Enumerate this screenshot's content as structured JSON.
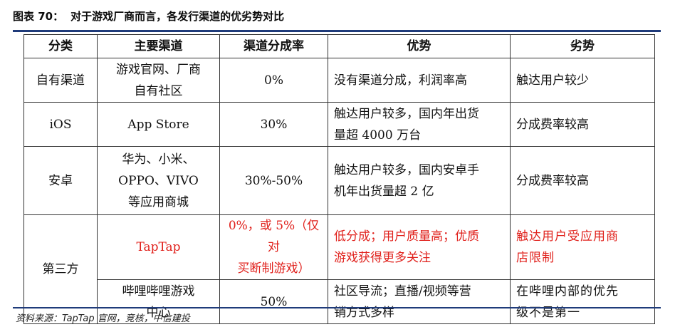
{
  "document": {
    "figure_label": "图表 70：",
    "title": "对于游戏厂商而言，各发行渠道的优劣势对比",
    "source": "资料来源：TapTap 官网，竞核，中信建投"
  },
  "table": {
    "headers": {
      "category": "分类",
      "main_channel": "主要渠道",
      "revenue_share": "渠道分成率",
      "advantages": "优势",
      "disadvantages": "劣势"
    },
    "rows": [
      {
        "category": "自有渠道",
        "channel_line1": "游戏官网、厂商",
        "channel_line2": "自有社区",
        "share": "0%",
        "advantage_line1": "没有渠道分成，利润率高",
        "advantage_line2": "",
        "disadvantage_line1": "触达用户较少",
        "disadvantage_line2": ""
      },
      {
        "category": "iOS",
        "channel_line1": "App Store",
        "share": "30%",
        "advantage_line1": "触达用户较多，国内年出货",
        "advantage_line2": "量超 4000 万台",
        "disadvantage_line1": "分成费率较高"
      },
      {
        "category": "安卓",
        "channel_line1": "华为、小米、",
        "channel_line2": "OPPO、VIVO",
        "channel_line3": "等应用商城",
        "share": "30%-50%",
        "advantage_line1": "触达用户较多，国内安卓手",
        "advantage_line2": "机年出货量超 2 亿",
        "disadvantage_line1": "分成费率较高"
      },
      {
        "category": "第三方",
        "channel_line1": "TapTap",
        "share_line1": "0%，或 5%（仅对",
        "share_line2": "买断制游戏）",
        "advantage_line1": "低分成；用户质量高；优质",
        "advantage_line2": "游戏获得更多关注",
        "disadvantage_line1": "触达用户受应用商",
        "disadvantage_line2": "店限制"
      },
      {
        "category": "",
        "channel_line1": "哔哩哔哩游戏",
        "channel_line2": "中心",
        "share": "50%",
        "advantage_line1": "社区导流；直播/视频等营",
        "advantage_line2": "销方式多样",
        "disadvantage_line1": "在哔哩内部的优先",
        "disadvantage_line2": "级不是第一"
      }
    ]
  },
  "colors": {
    "accent_rule": "#1f3b7a",
    "highlight_red": "#e0201b"
  }
}
